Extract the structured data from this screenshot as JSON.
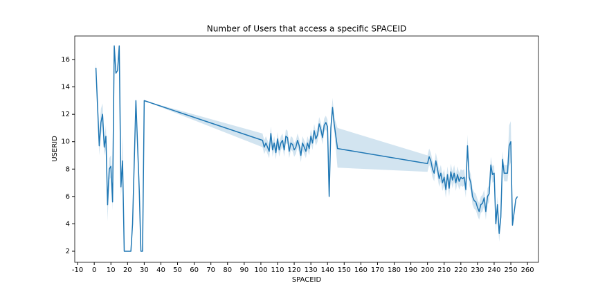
{
  "chart_data": {
    "type": "line",
    "title": "Number of Users that access a specific SPACEID",
    "xlabel": "SPACEID",
    "ylabel": "USERID",
    "color": "#1f77b4",
    "xlim": [
      -11.7,
      266.6
    ],
    "ylim": [
      1.19,
      17.72
    ],
    "xticks": [
      -10,
      0,
      10,
      20,
      30,
      40,
      50,
      60,
      70,
      80,
      90,
      100,
      110,
      120,
      130,
      140,
      150,
      160,
      170,
      180,
      190,
      200,
      210,
      220,
      230,
      240,
      250,
      260
    ],
    "yticks": [
      2,
      4,
      6,
      8,
      10,
      12,
      14,
      16
    ],
    "x": [
      1,
      3,
      4,
      5,
      6,
      7,
      8,
      9,
      10,
      11,
      12,
      13,
      14,
      15,
      16,
      17,
      18,
      19,
      22,
      23,
      25,
      27,
      28,
      29,
      30,
      101,
      102,
      103,
      104,
      105,
      106,
      107,
      108,
      109,
      110,
      111,
      112,
      113,
      114,
      115,
      116,
      117,
      118,
      119,
      120,
      121,
      122,
      123,
      124,
      125,
      126,
      127,
      128,
      129,
      130,
      131,
      132,
      133,
      134,
      135,
      136,
      137,
      138,
      139,
      140,
      141,
      142,
      143,
      144,
      146,
      200,
      201,
      202,
      203,
      204,
      205,
      206,
      207,
      208,
      209,
      210,
      211,
      212,
      213,
      214,
      215,
      216,
      217,
      218,
      219,
      220,
      221,
      222,
      223,
      224,
      225,
      226,
      227,
      228,
      229,
      230,
      231,
      232,
      233,
      234,
      235,
      236,
      237,
      238,
      239,
      240,
      241,
      242,
      243,
      244,
      245,
      246,
      247,
      248,
      249,
      250,
      251,
      253,
      254
    ],
    "values": [
      15.4,
      9.7,
      11.4,
      12,
      9.6,
      10.4,
      5.4,
      8,
      8.2,
      5.6,
      17,
      15,
      15.2,
      17,
      6.7,
      8.6,
      2,
      2,
      2,
      4,
      13,
      6.5,
      2,
      2,
      13,
      10.1,
      9.6,
      9.9,
      9.6,
      9.3,
      10.6,
      9.4,
      9.9,
      9.2,
      10.2,
      9.4,
      9.9,
      10.1,
      9.4,
      10.4,
      10.3,
      9.3,
      9.9,
      9.8,
      9.4,
      9.6,
      10.1,
      9.7,
      9.0,
      9.9,
      9.6,
      9.3,
      9.9,
      9.5,
      10.4,
      9.9,
      10.8,
      10.2,
      10.5,
      11.3,
      10.9,
      10.3,
      11.2,
      11.4,
      11.1,
      6.0,
      11.0,
      12.5,
      11.3,
      9.5,
      8.4,
      8.9,
      8.6,
      8.0,
      7.7,
      8.6,
      8.0,
      7.3,
      7.7,
      7.0,
      7.4,
      6.5,
      7.6,
      6.6,
      7.8,
      7.2,
      7.7,
      7.0,
      7.6,
      7.1,
      7.4,
      7.3,
      7.4,
      6.5,
      9.7,
      7.4,
      7.0,
      6.0,
      5.7,
      5.6,
      5.2,
      4.9,
      5.4,
      5.5,
      5.9,
      4.9,
      6.0,
      6.2,
      8.3,
      7.6,
      7.7,
      4.0,
      5.4,
      3.3,
      4.5,
      8.7,
      7.7,
      7.7,
      7.7,
      9.7,
      10.0,
      3.9,
      5.8,
      6.0
    ],
    "ci_lower": [
      14.8,
      9.0,
      10.5,
      11.2,
      9.0,
      9.5,
      4.2,
      7.2,
      7.4,
      5.0,
      17,
      15,
      15.2,
      17,
      6.0,
      7.5,
      2,
      2,
      2,
      3.5,
      13,
      6.5,
      2,
      2,
      13,
      9.6,
      9.1,
      9.4,
      9.1,
      8.8,
      10.1,
      8.9,
      9.4,
      8.7,
      9.7,
      8.9,
      9.4,
      9.6,
      8.9,
      9.9,
      9.8,
      8.8,
      9.4,
      9.3,
      8.9,
      9.1,
      9.6,
      9.2,
      8.5,
      9.4,
      9.1,
      8.8,
      9.4,
      9.0,
      9.9,
      9.4,
      10.3,
      9.7,
      10.0,
      10.8,
      10.4,
      9.8,
      10.7,
      10.9,
      10.6,
      6.0,
      10.5,
      11.8,
      10.8,
      8.1,
      7.8,
      8.3,
      8.0,
      7.4,
      7.1,
      8.0,
      7.4,
      6.7,
      7.1,
      6.4,
      6.8,
      5.9,
      7.0,
      6.0,
      7.2,
      6.6,
      7.1,
      6.4,
      7.0,
      6.5,
      6.8,
      6.7,
      6.8,
      5.9,
      8.9,
      6.8,
      6.4,
      5.4,
      5.1,
      5.0,
      4.6,
      4.3,
      4.8,
      4.9,
      5.3,
      4.3,
      5.4,
      5.6,
      7.7,
      7.0,
      7.1,
      3.4,
      4.8,
      2.7,
      3.9,
      8.1,
      7.1,
      7.1,
      7.1,
      8.2,
      8.5,
      3.9,
      5.8,
      6.0
    ],
    "ci_upper": [
      15.9,
      10.6,
      12.4,
      12.8,
      10.2,
      11.2,
      6.6,
      8.8,
      9.0,
      6.2,
      17,
      15,
      15.2,
      17,
      7.5,
      10.5,
      2,
      2,
      2,
      4.5,
      13,
      6.5,
      2,
      2,
      13,
      10.6,
      10.1,
      10.4,
      10.1,
      9.8,
      11.1,
      9.9,
      10.4,
      9.7,
      10.7,
      9.9,
      10.4,
      10.6,
      9.9,
      10.9,
      10.8,
      9.8,
      10.4,
      10.3,
      9.9,
      10.1,
      10.6,
      10.2,
      9.5,
      10.4,
      10.1,
      9.8,
      10.4,
      10.0,
      10.9,
      10.4,
      11.3,
      10.7,
      11.0,
      11.8,
      11.4,
      10.8,
      11.7,
      11.9,
      11.6,
      6.0,
      11.5,
      13.2,
      11.8,
      11.0,
      9.0,
      9.5,
      9.2,
      8.6,
      8.3,
      9.2,
      8.6,
      7.9,
      8.3,
      7.6,
      8.0,
      7.1,
      8.2,
      7.2,
      8.4,
      7.8,
      8.3,
      7.6,
      8.2,
      7.7,
      8.0,
      7.9,
      8.0,
      7.1,
      10.5,
      8.0,
      7.6,
      6.6,
      6.3,
      6.2,
      5.8,
      5.5,
      6.0,
      6.1,
      6.5,
      5.5,
      6.6,
      6.8,
      8.9,
      8.2,
      8.3,
      4.6,
      6.0,
      3.9,
      5.1,
      9.3,
      8.3,
      8.3,
      8.3,
      11.2,
      11.5,
      3.9,
      5.8,
      6.0
    ]
  }
}
